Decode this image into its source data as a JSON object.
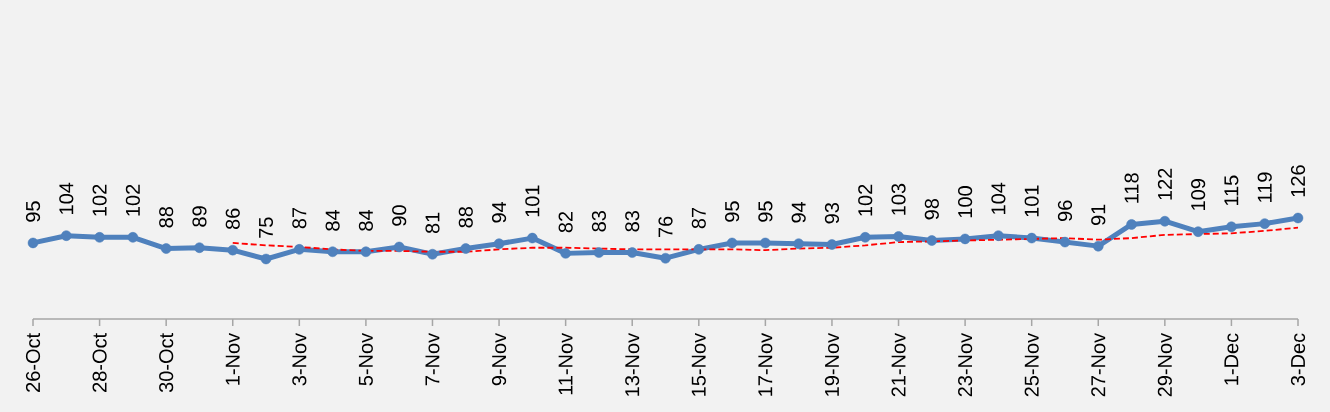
{
  "chart_data": {
    "type": "line",
    "categories": [
      "26-Oct",
      null,
      "28-Oct",
      null,
      "30-Oct",
      null,
      "1-Nov",
      null,
      "3-Nov",
      null,
      "5-Nov",
      null,
      "7-Nov",
      null,
      "9-Nov",
      null,
      "11-Nov",
      null,
      "13-Nov",
      null,
      "15-Nov",
      null,
      "17-Nov",
      null,
      "19-Nov",
      null,
      "21-Nov",
      null,
      "23-Nov",
      null,
      "25-Nov",
      null,
      "27-Nov",
      null,
      "29-Nov",
      null,
      "1-Dec",
      null,
      "3-Dec"
    ],
    "tick_labels": "x",
    "series": [
      {
        "color": "#4f81bd",
        "marker": "circle",
        "line_style": "solid",
        "values": [
          95,
          104,
          102,
          102,
          88,
          89,
          86,
          75,
          87,
          84,
          84,
          90,
          81,
          88,
          94,
          101,
          82,
          83,
          83,
          76,
          87,
          95,
          95,
          94,
          93,
          102,
          103,
          98,
          100,
          104,
          101,
          96,
          91,
          118,
          122,
          109,
          115,
          119,
          126
        ],
        "value_labels": [
          "95",
          "104",
          "102",
          "102",
          "88",
          "89",
          "86",
          "75",
          "87",
          "84",
          "84",
          "90",
          "81",
          "88",
          "94",
          "101",
          "82",
          "83",
          "83",
          "76",
          "87",
          "95",
          "95",
          "94",
          "93",
          "102",
          "103",
          "98",
          "100",
          "104",
          "101",
          "96",
          "91",
          "118",
          "122",
          "109",
          "115",
          "119",
          "126"
        ]
      },
      {
        "type": "line",
        "color": "#ff0000",
        "marker": "none",
        "line_style": "dashed",
        "values": [
          null,
          null,
          null,
          null,
          null,
          null,
          95,
          92,
          90,
          87,
          85,
          85,
          84,
          84,
          87,
          89,
          89,
          88,
          87,
          87,
          87,
          87,
          86,
          88,
          89,
          92,
          96,
          97,
          98,
          99,
          100,
          101,
          99,
          101,
          105,
          106,
          107,
          110,
          114
        ]
      }
    ]
  }
}
